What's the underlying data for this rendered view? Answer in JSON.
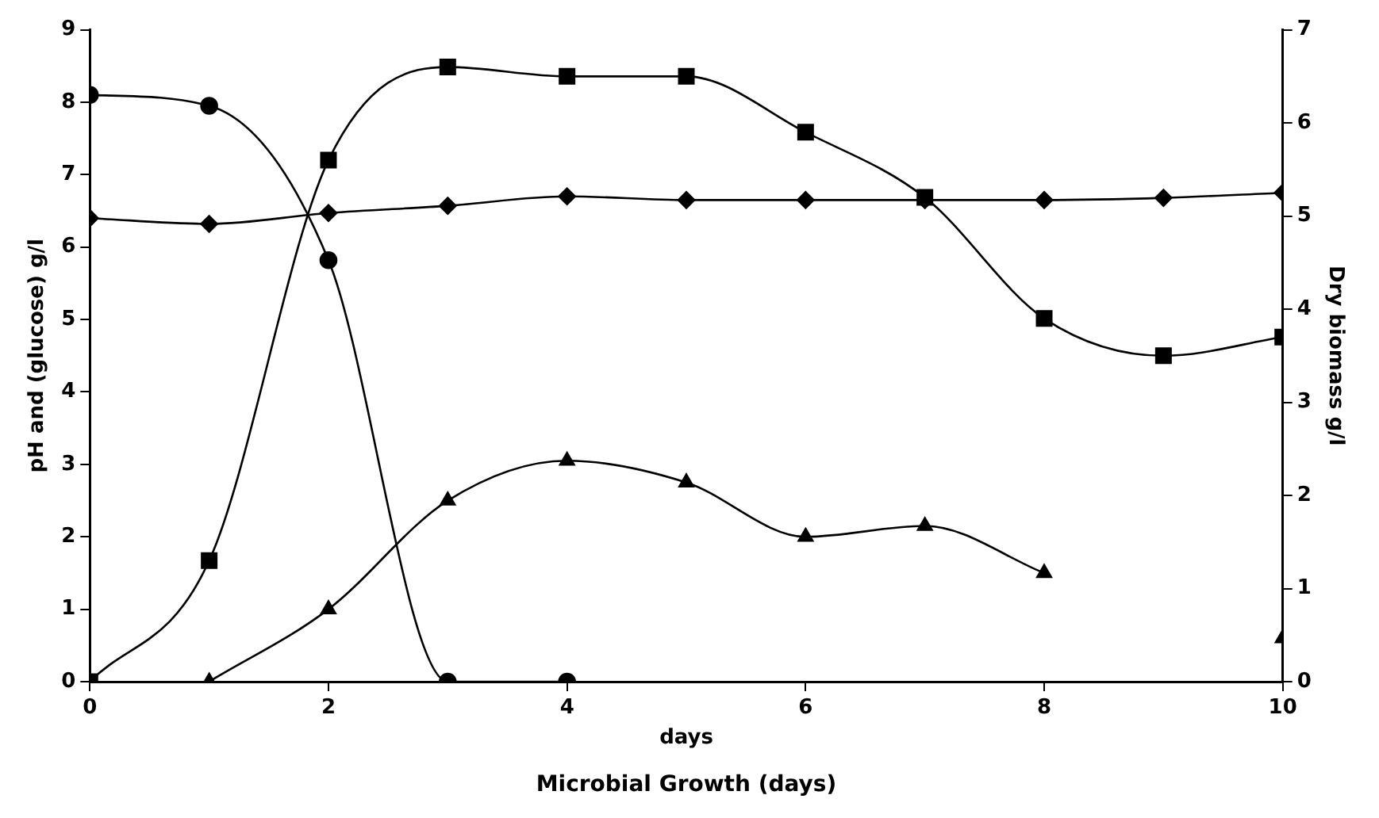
{
  "chart_data": {
    "type": "line",
    "title": "Microbial Growth (days)",
    "xlabel": "days",
    "ylabel": "pH and (glucose) g/l",
    "y2label": "Dry biomass g/l",
    "x": [
      0,
      1,
      2,
      3,
      4,
      5,
      6,
      7,
      8,
      9,
      10
    ],
    "series": [
      {
        "color": "#000000",
        "marker": "diamond",
        "values": [
          6.4,
          6.32,
          6.47,
          6.57,
          6.7,
          6.65,
          6.65,
          6.65,
          6.65,
          6.68,
          6.75
        ]
      },
      {
        "color": "#000000",
        "marker": "circle",
        "values": [
          8.1,
          7.95,
          5.82,
          0,
          0,
          null,
          null,
          null,
          null,
          null,
          null
        ]
      },
      {
        "color": "#000000",
        "marker": "square",
        "axis": "y2",
        "values": [
          0,
          1.3,
          5.6,
          6.6,
          6.5,
          6.5,
          5.9,
          5.2,
          3.9,
          3.5,
          3.7
        ]
      },
      {
        "color": "#000000",
        "marker": "triangle",
        "values": [
          null,
          0,
          1,
          2.5,
          3.05,
          2.75,
          2,
          2.15,
          1.5,
          null,
          0.6
        ]
      }
    ],
    "xlim": [
      0,
      10
    ],
    "xticks": [
      0,
      2,
      4,
      6,
      8,
      10
    ],
    "ylim": [
      0,
      9
    ],
    "yticks": [
      0,
      1,
      2,
      3,
      4,
      5,
      6,
      7,
      8,
      9
    ],
    "y2lim": [
      0,
      7
    ],
    "y2ticks": [
      0,
      1,
      2,
      3,
      4,
      5,
      6,
      7
    ],
    "grid": false,
    "legend": false
  }
}
